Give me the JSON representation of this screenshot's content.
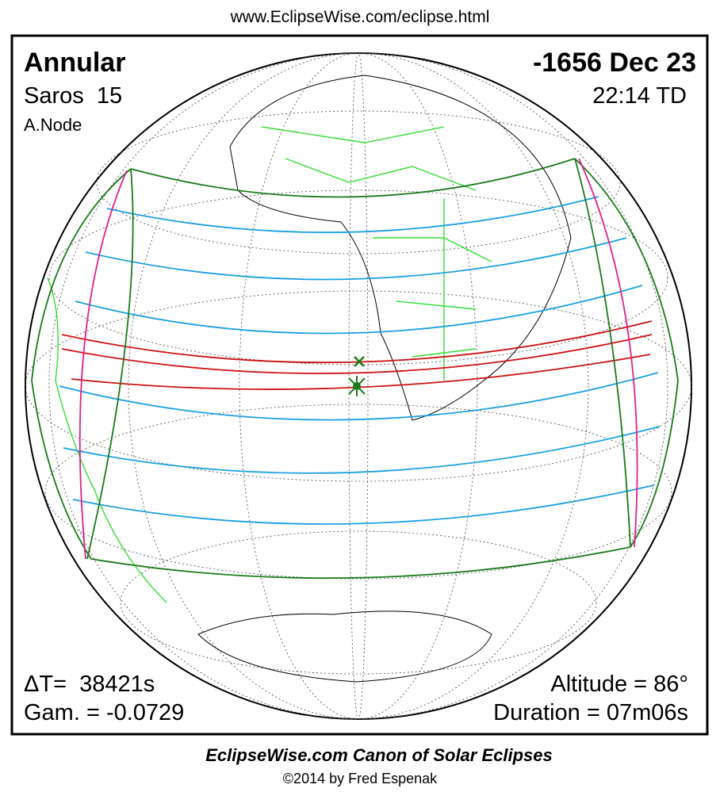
{
  "header": {
    "url": "www.EclipseWise.com/eclipse.html"
  },
  "panel": {
    "eclipse_type": "Annular",
    "date": "-1656 Dec 23",
    "saros": "Saros  15",
    "time": "22:14 TD",
    "node": "A.Node",
    "delta_t": "ΔT=  38421s",
    "gamma": "Gam. = -0.0729",
    "altitude": "Altitude = 86°",
    "duration": "Duration = 07m06s"
  },
  "footer": {
    "title": "EclipseWise.com Canon of Solar Eclipses",
    "credit": "©2014 by Fred Espenak"
  }
}
